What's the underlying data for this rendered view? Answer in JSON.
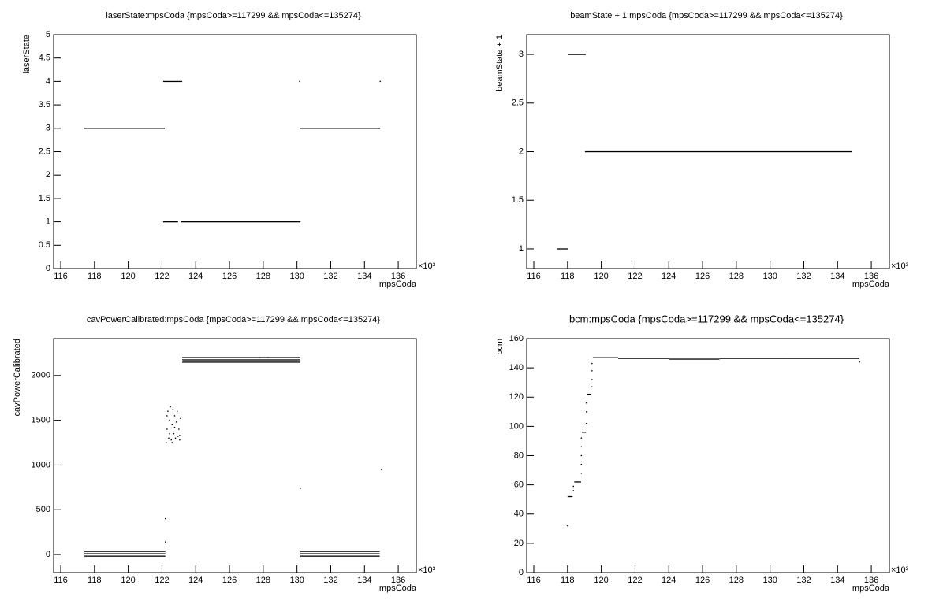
{
  "chart_data": [
    {
      "type": "scatter",
      "title": "laserState:mpsCoda {mpsCoda>=117299 && mpsCoda<=135274}",
      "xlabel": "mpsCoda",
      "ylabel": "laserState",
      "x_multiplier": "×10³",
      "xlim": [
        115.58,
        137.07
      ],
      "ylim": [
        0,
        5
      ],
      "xticks": [
        116,
        118,
        120,
        122,
        124,
        126,
        128,
        130,
        132,
        134,
        136
      ],
      "yticks": [
        0,
        0.5,
        1,
        1.5,
        2,
        2.5,
        3,
        3.5,
        4,
        4.5,
        5
      ],
      "runs": {
        "x_start": [
          117.4,
          122.07,
          122.07,
          123.1,
          130.16
        ],
        "x_end": [
          122.17,
          123.2,
          122.95,
          130.21,
          134.93
        ],
        "y": [
          3,
          4,
          1,
          1,
          3
        ]
      },
      "points": {
        "x": [
          130.16,
          134.93
        ],
        "y": [
          4,
          4
        ]
      }
    },
    {
      "type": "scatter",
      "title": "beamState + 1:mpsCoda {mpsCoda>=117299 && mpsCoda<=135274}",
      "xlabel": "mpsCoda",
      "ylabel": "beamState + 1",
      "x_multiplier": "×10³",
      "xlim": [
        115.58,
        137.07
      ],
      "ylim": [
        0.797,
        3.203
      ],
      "xticks": [
        116,
        118,
        120,
        122,
        124,
        126,
        128,
        130,
        132,
        134,
        136
      ],
      "yticks": [
        1,
        1.5,
        2,
        2.5,
        3
      ],
      "runs": {
        "x_start": [
          117.36,
          118.01,
          119.03
        ],
        "x_end": [
          118.01,
          119.08,
          134.83
        ],
        "y": [
          1,
          3,
          2
        ]
      },
      "points": {
        "x": [],
        "y": []
      }
    },
    {
      "type": "scatter",
      "title": "cavPowerCalibrated:mpsCoda {mpsCoda>=117299 && mpsCoda<=135274}",
      "xlabel": "mpsCoda",
      "ylabel": "cavPowerCalibrated",
      "x_multiplier": "×10³",
      "xlim": [
        115.58,
        137.07
      ],
      "ylim": [
        -202,
        2412
      ],
      "xticks": [
        116,
        118,
        120,
        122,
        124,
        126,
        128,
        130,
        132,
        134,
        136
      ],
      "yticks": [
        0,
        500,
        1000,
        1500,
        2000
      ],
      "runs": {
        "x_start": [
          117.4,
          117.4,
          117.4,
          123.2,
          123.2,
          123.2,
          130.2,
          130.2,
          130.2
        ],
        "x_end": [
          122.2,
          122.2,
          122.2,
          130.2,
          130.2,
          130.2,
          134.9,
          134.9,
          134.9
        ],
        "y": [
          35,
          9,
          -18,
          2201,
          2175,
          2149,
          35,
          9,
          -18
        ]
      },
      "points": {
        "x": [
          122.2,
          122.2,
          130.2,
          135.0,
          122.25,
          122.3,
          122.35,
          122.4,
          122.45,
          122.5,
          122.55,
          122.6,
          122.65,
          122.7,
          122.75,
          122.8,
          122.85,
          122.9,
          122.95,
          123.0,
          123.05,
          123.1,
          122.3,
          122.45,
          122.6,
          122.75,
          122.9,
          123.05,
          127.8,
          128.3
        ],
        "y": [
          400,
          140,
          740,
          950,
          1250,
          1400,
          1600,
          1300,
          1500,
          1650,
          1280,
          1450,
          1620,
          1350,
          1550,
          1300,
          1480,
          1600,
          1320,
          1400,
          1280,
          1520,
          1550,
          1350,
          1250,
          1420,
          1580,
          1330,
          2200,
          2200
        ]
      }
    },
    {
      "type": "scatter",
      "title": "bcm:mpsCoda {mpsCoda>=117299 && mpsCoda<=135274}",
      "xlabel": "mpsCoda",
      "ylabel": "bcm",
      "x_multiplier": "×10³",
      "xlim": [
        115.58,
        137.07
      ],
      "ylim": [
        0,
        160
      ],
      "xticks": [
        116,
        118,
        120,
        122,
        124,
        126,
        128,
        130,
        132,
        134,
        136
      ],
      "yticks": [
        0,
        20,
        40,
        60,
        80,
        100,
        120,
        140,
        160
      ],
      "runs": {
        "x_start": [
          118.0,
          118.4,
          118.85,
          119.15,
          119.5,
          121.0,
          124.0,
          127.0,
          131.0
        ],
        "x_end": [
          118.3,
          118.8,
          119.1,
          119.4,
          121.0,
          124.0,
          127.0,
          131.0,
          135.3
        ],
        "y": [
          52,
          62,
          96,
          122,
          147,
          146.5,
          146,
          146.5,
          146.5
        ]
      },
      "points": {
        "x": [
          118.0,
          118.35,
          118.35,
          118.82,
          118.82,
          118.82,
          118.82,
          118.82,
          119.12,
          119.12,
          119.12,
          119.45,
          119.45,
          119.45,
          119.45,
          135.3
        ],
        "y": [
          32,
          56,
          59,
          68,
          74,
          80,
          86,
          92,
          102,
          110,
          116,
          127,
          132,
          138,
          143,
          144
        ]
      }
    }
  ]
}
